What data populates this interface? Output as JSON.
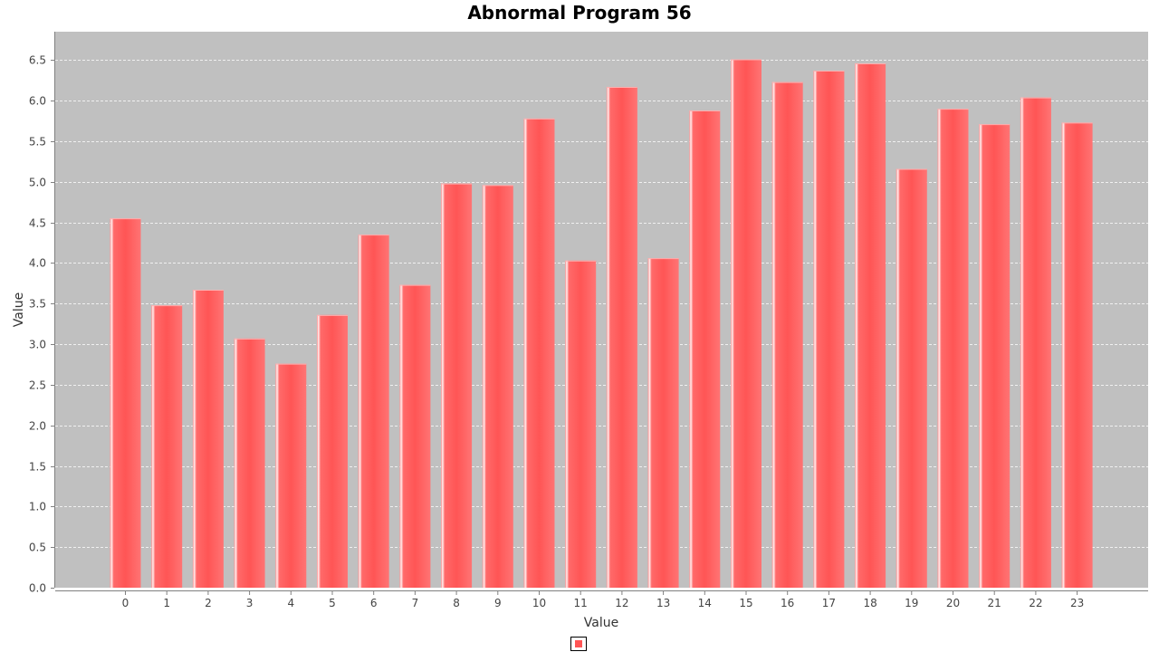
{
  "chart_data": {
    "type": "bar",
    "title": "Abnormal Program 56",
    "xlabel": "Value",
    "ylabel": "Value",
    "categories": [
      "0",
      "1",
      "2",
      "3",
      "4",
      "5",
      "6",
      "7",
      "8",
      "9",
      "10",
      "11",
      "12",
      "13",
      "14",
      "15",
      "16",
      "17",
      "18",
      "19",
      "20",
      "21",
      "22",
      "23"
    ],
    "series": [
      {
        "values": [
          4.55,
          3.48,
          3.67,
          3.07,
          2.76,
          3.36,
          4.35,
          3.73,
          4.98,
          4.96,
          5.78,
          4.03,
          6.17,
          4.06,
          5.88,
          6.51,
          6.23,
          6.37,
          6.46,
          5.16,
          5.9,
          5.71,
          6.04,
          5.73
        ]
      }
    ],
    "ylim": [
      0,
      6.85
    ],
    "yticks": [
      "0.0",
      "0.5",
      "1.0",
      "1.5",
      "2.0",
      "2.5",
      "3.0",
      "3.5",
      "4.0",
      "4.5",
      "5.0",
      "5.5",
      "6.0",
      "6.5"
    ],
    "grid": true,
    "legend_position": "bottom",
    "colors": {
      "bar": "#ff5555",
      "bar_highlight": "#ffe0e0",
      "plot_background": "#c0c0c0",
      "gridline": "#ffffff"
    }
  }
}
